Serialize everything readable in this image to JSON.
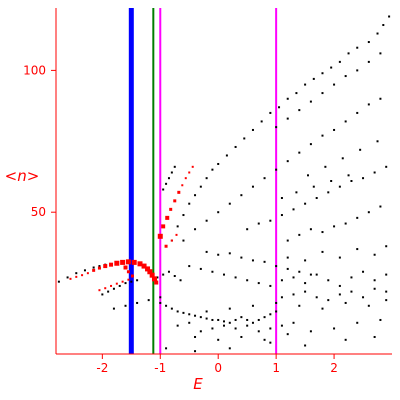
{
  "chart_data": {
    "type": "scatter",
    "xlabel": "E",
    "ylabel": "<n>",
    "xlim": [
      -2.8,
      3.0
    ],
    "ylim": [
      0,
      122
    ],
    "x_ticks": [
      -2,
      -1,
      0,
      1,
      2
    ],
    "x_tick_labels": [
      "-2",
      "-1",
      "0",
      "1",
      "2"
    ],
    "y_ticks": [
      50,
      100
    ],
    "y_tick_labels": [
      "50",
      "100"
    ],
    "colors": {
      "axis": "#ff0000",
      "points": "#000000",
      "highlight": "#ff0000",
      "line_blue": "#0000ff",
      "line_green": "#008000",
      "line_magenta": "#ff00ff"
    },
    "vertical_lines": [
      {
        "x": -1.5,
        "color": "#0000ff",
        "width": "thick"
      },
      {
        "x": -1.12,
        "color": "#008000",
        "width": "thin"
      },
      {
        "x": -1.0,
        "color": "#ff00ff",
        "width": "thin"
      },
      {
        "x": 1.0,
        "color": "#ff00ff",
        "width": "thin"
      }
    ],
    "series": [
      {
        "marker": "small-black-dot",
        "points": [
          [
            -2.75,
            25.5
          ],
          [
            -2.6,
            27
          ],
          [
            -2.45,
            28.5
          ],
          [
            -2.3,
            29.5
          ],
          [
            -2.15,
            30.5
          ],
          [
            -2.05,
            31
          ],
          [
            -1.95,
            31.5
          ],
          [
            -2.0,
            21
          ],
          [
            -1.9,
            22
          ],
          [
            -1.8,
            23
          ],
          [
            -1.7,
            24
          ],
          [
            -1.6,
            25
          ],
          [
            -1.5,
            25.5
          ],
          [
            -1.4,
            26
          ],
          [
            -1.8,
            16
          ],
          [
            -1.6,
            17
          ],
          [
            -1.4,
            18
          ],
          [
            -1.2,
            19
          ],
          [
            -1.0,
            20
          ],
          [
            -0.95,
            58
          ],
          [
            -0.9,
            60
          ],
          [
            -0.85,
            62
          ],
          [
            -0.8,
            64
          ],
          [
            -0.75,
            66
          ],
          [
            -0.8,
            40
          ],
          [
            -0.7,
            45
          ],
          [
            -0.6,
            49
          ],
          [
            -0.5,
            53
          ],
          [
            -0.4,
            56
          ],
          [
            -0.3,
            59
          ],
          [
            -0.2,
            62
          ],
          [
            -0.1,
            65
          ],
          [
            0.0,
            67
          ],
          [
            0.15,
            70
          ],
          [
            0.3,
            73
          ],
          [
            0.45,
            76
          ],
          [
            0.6,
            79
          ],
          [
            0.75,
            82
          ],
          [
            0.9,
            85
          ],
          [
            1.05,
            87
          ],
          [
            1.2,
            90
          ],
          [
            1.35,
            92
          ],
          [
            1.5,
            95
          ],
          [
            1.65,
            97
          ],
          [
            1.8,
            99
          ],
          [
            1.95,
            101
          ],
          [
            2.1,
            103
          ],
          [
            2.25,
            106
          ],
          [
            2.4,
            108
          ],
          [
            2.6,
            110
          ],
          [
            2.75,
            113
          ],
          [
            2.85,
            116
          ],
          [
            2.95,
            119
          ],
          [
            1.0,
            80
          ],
          [
            1.2,
            83
          ],
          [
            1.4,
            86
          ],
          [
            1.6,
            89
          ],
          [
            1.8,
            92
          ],
          [
            2.0,
            95
          ],
          [
            2.2,
            98
          ],
          [
            2.4,
            100
          ],
          [
            2.6,
            103
          ],
          [
            2.8,
            106
          ],
          [
            -0.6,
            40
          ],
          [
            -0.4,
            44
          ],
          [
            -0.2,
            47
          ],
          [
            0.0,
            50
          ],
          [
            0.2,
            53
          ],
          [
            0.4,
            56
          ],
          [
            0.6,
            59
          ],
          [
            0.8,
            62
          ],
          [
            1.0,
            65
          ],
          [
            1.2,
            68
          ],
          [
            1.4,
            71
          ],
          [
            1.6,
            74
          ],
          [
            1.8,
            77
          ],
          [
            2.0,
            79
          ],
          [
            2.2,
            82
          ],
          [
            2.4,
            85
          ],
          [
            2.6,
            88
          ],
          [
            2.8,
            90
          ],
          [
            0.5,
            44
          ],
          [
            0.7,
            46
          ],
          [
            0.9,
            47
          ],
          [
            1.1,
            49
          ],
          [
            1.3,
            51
          ],
          [
            1.5,
            53
          ],
          [
            1.7,
            55
          ],
          [
            1.9,
            57
          ],
          [
            2.1,
            59
          ],
          [
            2.3,
            61
          ],
          [
            2.5,
            62
          ],
          [
            2.7,
            64
          ],
          [
            2.9,
            66
          ],
          [
            -0.5,
            31
          ],
          [
            -0.3,
            30
          ],
          [
            -0.1,
            29
          ],
          [
            0.1,
            28
          ],
          [
            0.3,
            27
          ],
          [
            0.5,
            26
          ],
          [
            0.7,
            25
          ],
          [
            0.9,
            24
          ],
          [
            -0.2,
            36
          ],
          [
            0.0,
            35
          ],
          [
            0.2,
            35.5
          ],
          [
            0.4,
            34
          ],
          [
            0.6,
            33
          ],
          [
            0.8,
            32.5
          ],
          [
            1.0,
            31
          ],
          [
            1.2,
            30
          ],
          [
            1.4,
            29
          ],
          [
            1.6,
            28
          ],
          [
            1.2,
            40
          ],
          [
            1.4,
            42
          ],
          [
            1.6,
            44
          ],
          [
            1.8,
            43
          ],
          [
            2.0,
            45
          ],
          [
            2.2,
            46
          ],
          [
            2.4,
            48
          ],
          [
            2.6,
            50
          ],
          [
            2.8,
            52
          ],
          [
            -1.0,
            18
          ],
          [
            -0.9,
            17
          ],
          [
            -0.8,
            16
          ],
          [
            -0.7,
            15
          ],
          [
            -0.6,
            14.5
          ],
          [
            -0.5,
            14
          ],
          [
            -0.4,
            13.5
          ],
          [
            -0.3,
            13
          ],
          [
            -0.2,
            12.5
          ],
          [
            -0.1,
            12
          ],
          [
            0.0,
            12
          ],
          [
            0.1,
            11.5
          ],
          [
            0.2,
            11
          ],
          [
            0.3,
            12
          ],
          [
            0.4,
            13
          ],
          [
            0.5,
            12
          ],
          [
            0.6,
            11
          ],
          [
            0.7,
            12
          ],
          [
            0.8,
            13
          ],
          [
            0.9,
            14
          ],
          [
            1.0,
            15
          ],
          [
            -0.3,
            8
          ],
          [
            -0.1,
            9
          ],
          [
            0.1,
            10
          ],
          [
            0.3,
            9
          ],
          [
            0.5,
            10
          ],
          [
            0.7,
            8
          ],
          [
            0.9,
            9
          ],
          [
            1.1,
            10
          ],
          [
            1.3,
            11
          ],
          [
            -0.7,
            10
          ],
          [
            -0.5,
            11
          ],
          [
            -0.2,
            15
          ],
          [
            0.2,
            16
          ],
          [
            0.6,
            17
          ],
          [
            1.0,
            18
          ],
          [
            1.4,
            17
          ],
          [
            1.8,
            16
          ],
          [
            2.2,
            18
          ],
          [
            2.6,
            17
          ],
          [
            2.9,
            19
          ],
          [
            1.1,
            20
          ],
          [
            1.3,
            21
          ],
          [
            1.5,
            22
          ],
          [
            1.7,
            20
          ],
          [
            1.9,
            19
          ],
          [
            2.1,
            21
          ],
          [
            2.3,
            22
          ],
          [
            2.5,
            20
          ],
          [
            2.7,
            23
          ],
          [
            2.9,
            22
          ],
          [
            1.1,
            26
          ],
          [
            1.3,
            27
          ],
          [
            1.5,
            25
          ],
          [
            1.7,
            28
          ],
          [
            1.9,
            26
          ],
          [
            2.1,
            24
          ],
          [
            2.3,
            27
          ],
          [
            2.5,
            29
          ],
          [
            2.7,
            26
          ],
          [
            2.9,
            28
          ],
          [
            1.2,
            34
          ],
          [
            1.5,
            33
          ],
          [
            1.8,
            36
          ],
          [
            2.1,
            34
          ],
          [
            2.4,
            37
          ],
          [
            2.7,
            35
          ],
          [
            2.9,
            38
          ],
          [
            -0.4,
            6
          ],
          [
            0.0,
            5
          ],
          [
            0.4,
            6
          ],
          [
            0.8,
            5
          ],
          [
            1.2,
            7
          ],
          [
            1.6,
            8
          ],
          [
            2.0,
            9
          ],
          [
            2.4,
            11
          ],
          [
            2.8,
            12
          ],
          [
            -0.9,
            2
          ],
          [
            -0.4,
            1
          ],
          [
            0.2,
            2
          ],
          [
            0.9,
            4
          ],
          [
            1.5,
            3
          ],
          [
            2.2,
            5
          ],
          [
            2.7,
            6
          ],
          [
            -1.05,
            27
          ],
          [
            -0.95,
            28
          ],
          [
            -0.85,
            29
          ],
          [
            -0.75,
            27.5
          ],
          [
            -0.65,
            26
          ],
          [
            1.55,
            63
          ],
          [
            1.85,
            66
          ],
          [
            2.15,
            69
          ],
          [
            2.45,
            72
          ],
          [
            2.75,
            75
          ],
          [
            1.1,
            55
          ],
          [
            1.35,
            57
          ],
          [
            1.65,
            59
          ],
          [
            1.95,
            61
          ],
          [
            2.25,
            63
          ]
        ]
      },
      {
        "marker": "red-square",
        "points": [
          [
            -2.55,
            26.5,
            2
          ],
          [
            -2.45,
            27.2,
            2
          ],
          [
            -2.35,
            27.8,
            2
          ],
          [
            -2.25,
            28.5,
            2
          ],
          [
            -2.15,
            29.5,
            3
          ],
          [
            -2.05,
            30.3,
            3
          ],
          [
            -1.95,
            31.0,
            4
          ],
          [
            -1.85,
            31.5,
            4
          ],
          [
            -1.75,
            32.0,
            5
          ],
          [
            -1.65,
            32.3,
            5
          ],
          [
            -1.55,
            32.5,
            5
          ],
          [
            -1.45,
            32.3,
            5
          ],
          [
            -1.35,
            31.8,
            5
          ],
          [
            -1.28,
            31.0,
            5
          ],
          [
            -1.22,
            30.0,
            5
          ],
          [
            -1.18,
            29.0,
            5
          ],
          [
            -1.14,
            27.8,
            5
          ],
          [
            -1.1,
            26.5,
            5
          ],
          [
            -1.07,
            25.2,
            4
          ],
          [
            -1.6,
            30.5,
            4
          ],
          [
            -1.55,
            29.0,
            3
          ],
          [
            -1.48,
            27.5,
            3
          ],
          [
            -2.05,
            22.5,
            2
          ],
          [
            -1.95,
            23.2,
            2
          ],
          [
            -1.85,
            24.0,
            2
          ],
          [
            -1.75,
            24.8,
            2
          ],
          [
            -1.65,
            25.5,
            2
          ],
          [
            -1.55,
            26.2,
            2
          ],
          [
            -1.0,
            41.5,
            5
          ],
          [
            -0.95,
            45.0,
            4
          ],
          [
            -0.88,
            48.0,
            4
          ],
          [
            -0.82,
            51.0,
            3
          ],
          [
            -0.75,
            54.0,
            3
          ],
          [
            -0.68,
            57.0,
            3
          ],
          [
            -0.62,
            59.5,
            2
          ],
          [
            -0.56,
            62.0,
            2
          ],
          [
            -0.5,
            64.0,
            2
          ],
          [
            -0.44,
            66.0,
            2
          ],
          [
            -0.9,
            38.0,
            3
          ],
          [
            -0.8,
            40.0,
            2
          ],
          [
            -0.72,
            42.0,
            2
          ]
        ]
      }
    ]
  }
}
